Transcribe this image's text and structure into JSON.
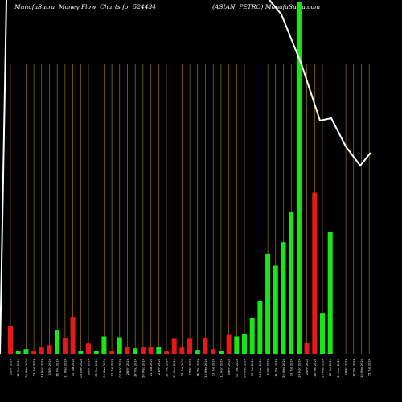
{
  "header": {
    "left": "MunafaSutra  Money Flow  Charts for 524434",
    "right": "(ASIAN  PETRO) MunafaSutra.com"
  },
  "colors": {
    "up": "#19e619",
    "down": "#e61919",
    "grid": "#b8860b",
    "line": "#ffffff",
    "background": "#000000"
  },
  "chart_data": {
    "type": "bar",
    "categories": [
      "16 Fri 2024",
      "10 Thu 2024",
      "20 Wed 2024",
      "19 Tue 2024",
      "18 Mon 2024",
      "15 Fri 2024",
      "16 Thu 2024",
      "11 Wed 2024",
      "10 Tue 2024",
      "09 Mon 2024",
      "06 Fri 2024",
      "05 Thu 2024",
      "04 Wed 2024",
      "03 Tue 2024",
      "02 Mon 2024",
      "28 Fri 2024",
      "27 Thu 2024",
      "26 Wed 2024",
      "25 Tue 2024",
      "21 Fri 2024",
      "20 Thu 2024",
      "19 Wed 2024",
      "18 Tue 2024",
      "15 Fri 2024",
      "14 Thu 2024",
      "13 Wed 2024",
      "12 Tue 2024",
      "11 Mon 2024",
      "08 Fri 2024",
      "07 Thu 2024",
      "06 Wed 2024",
      "05 Tue 2024",
      "04 Mon 2024",
      "01 Fri 2024",
      "31 Thu 2024",
      "30 Wed 2024",
      "29 Tue 2024",
      "28 Mon 2024",
      "25 Fri 2024",
      "24 Thu 2024",
      "23 Wed 2024",
      "22 Tue 2024",
      "21 Mon 2024",
      "18 Fri 2024",
      "17 Thu 2024",
      "16 Wed 2024",
      "15 Tue 2024"
    ],
    "values": [
      35,
      4,
      6,
      3,
      8,
      11,
      30,
      20,
      47,
      4,
      13,
      4,
      22,
      3,
      21,
      9,
      7,
      8,
      9,
      9,
      3,
      19,
      8,
      19,
      5,
      20,
      6,
      4,
      24,
      22,
      25,
      46,
      67,
      127,
      112,
      142,
      180,
      447,
      14,
      205,
      52,
      155,
      0,
      0,
      0,
      0,
      0
    ],
    "directions": [
      "down",
      "up",
      "up",
      "down",
      "down",
      "down",
      "up",
      "down",
      "down",
      "up",
      "down",
      "up",
      "up",
      "down",
      "up",
      "down",
      "up",
      "down",
      "down",
      "up",
      "down",
      "down",
      "down",
      "down",
      "up",
      "down",
      "down",
      "up",
      "down",
      "up",
      "up",
      "up",
      "up",
      "up",
      "up",
      "up",
      "up",
      "up",
      "down",
      "down",
      "up",
      "up",
      "up",
      "up",
      "up",
      "up",
      "up"
    ],
    "line": [
      8,
      9,
      10,
      11,
      12,
      13,
      14,
      15,
      16,
      17,
      18,
      19,
      20,
      21,
      22,
      23,
      24,
      25,
      26,
      27,
      28,
      29,
      30,
      31,
      32,
      33,
      34,
      35,
      36,
      37,
      38,
      39,
      40,
      41,
      42,
      48,
      62,
      78,
      100,
      121,
      138,
      158,
      200,
      240,
      265,
      276,
      262
    ],
    "ylim": [
      0,
      450
    ]
  }
}
